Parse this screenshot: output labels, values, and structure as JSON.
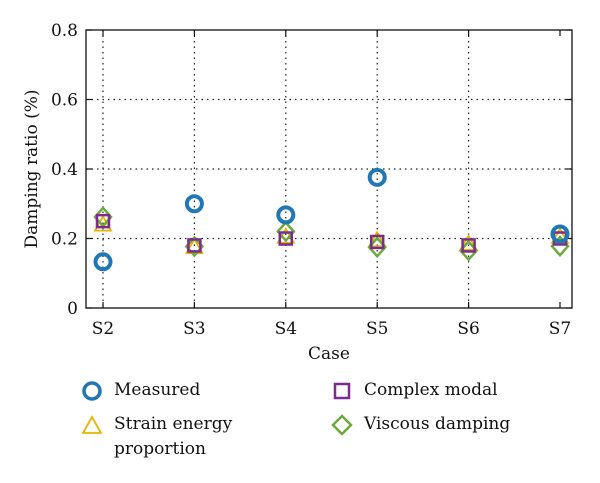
{
  "chart_data": {
    "type": "scatter",
    "categories": [
      "S2",
      "S3",
      "S4",
      "S5",
      "S6",
      "S7"
    ],
    "xlabel": "Case",
    "ylabel": "Damping ratio (%)",
    "ylim": [
      0,
      0.8
    ],
    "yticks": [
      "0",
      "0.2",
      "0.4",
      "0.6",
      "0.8"
    ],
    "grid": true,
    "legend_position": "bottom",
    "series": [
      {
        "name": "Measured",
        "marker": "circle",
        "color": "#1f77b4",
        "values": [
          0.133,
          0.3,
          0.268,
          0.376,
          null,
          0.213
        ]
      },
      {
        "name": "Complex modal",
        "marker": "square",
        "color": "#7b2d8e",
        "values": [
          0.25,
          0.18,
          0.2,
          0.19,
          0.18,
          0.2
        ]
      },
      {
        "name": "Strain energy proportion",
        "marker": "triangle",
        "color": "#e8b400",
        "values": [
          0.24,
          0.175,
          0.205,
          0.195,
          0.185,
          0.205
        ]
      },
      {
        "name": "Viscous damping",
        "marker": "diamond",
        "color": "#6aaa3a",
        "values": [
          0.262,
          0.177,
          0.22,
          0.175,
          0.165,
          0.178
        ]
      }
    ],
    "legend_lines": {
      "strain_line1": "Strain energy",
      "strain_line2": "proportion"
    }
  }
}
